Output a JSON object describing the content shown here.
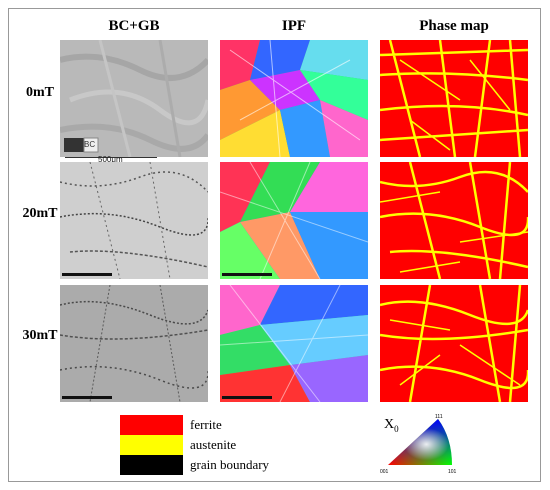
{
  "columns": [
    "BC+GB",
    "IPF",
    "Phase map"
  ],
  "rows": [
    "0mT",
    "20mT",
    "30mT"
  ],
  "first_panel": {
    "badge": "BC",
    "scalebar": "500μm"
  },
  "legend": [
    {
      "label": "ferrite",
      "color": "#ff0000"
    },
    {
      "label": "austenite",
      "color": "#ffff00"
    },
    {
      "label": "grain boundary",
      "color": "#000000"
    }
  ],
  "ipf_key": {
    "axis_label_base": "X",
    "axis_label_sub": "0",
    "corners": [
      "001",
      "101",
      "111"
    ]
  },
  "colors": {
    "ferrite": "#ff0000",
    "austenite": "#ffff00",
    "boundary": "#000000"
  }
}
